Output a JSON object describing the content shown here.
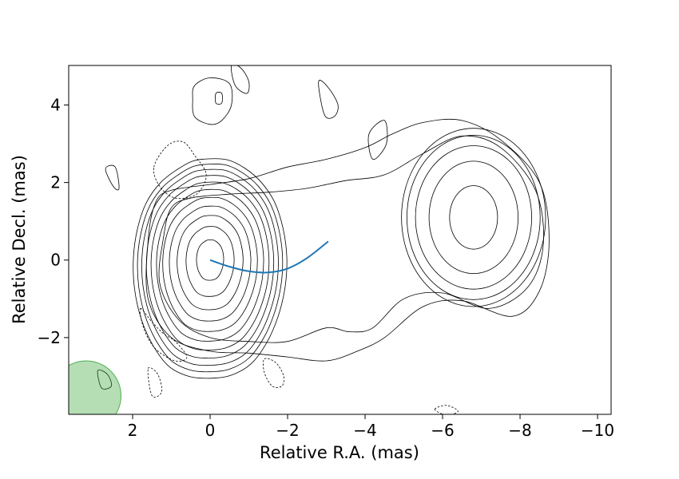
{
  "chart_data": {
    "type": "contour",
    "xlabel": "Relative R.A. (mas)",
    "ylabel": "Relative Decl. (mas)",
    "xlim": [
      3.65,
      -10.35
    ],
    "ylim": [
      -3.98,
      5.02
    ],
    "x_ticks": [
      2,
      0,
      -2,
      -4,
      -6,
      -8,
      -10
    ],
    "y_ticks": [
      4,
      2,
      0,
      -2
    ],
    "x_tick_labels": [
      "2",
      "0",
      "−2",
      "−4",
      "−6",
      "−8",
      "−10"
    ],
    "y_tick_labels": [
      "4",
      "2",
      "0",
      "−2"
    ],
    "curve": {
      "color": "#1f77b4",
      "x": [
        0,
        -0.5,
        -1.0,
        -1.5,
        -2.0,
        -2.5,
        -3.05
      ],
      "y": [
        0.0,
        -0.17,
        -0.29,
        -0.32,
        -0.22,
        0.05,
        0.48
      ]
    },
    "beam": {
      "center": [
        3.2,
        -3.5
      ],
      "radius_mas": 0.9,
      "color": "#2ca02c",
      "alpha": 0.35
    },
    "core_contours": {
      "center": [
        0.0,
        0.05
      ],
      "shape": [
        [
          0.0,
          1.0
        ],
        [
          30,
          0.97
        ],
        [
          60,
          0.9
        ],
        [
          90,
          0.86
        ],
        [
          120,
          0.88
        ],
        [
          150,
          0.96
        ],
        [
          180,
          1.0
        ],
        [
          210,
          1.04
        ],
        [
          240,
          1.08
        ],
        [
          270,
          1.04
        ],
        [
          300,
          1.06
        ],
        [
          330,
          1.02
        ],
        [
          360,
          1.0
        ]
      ],
      "radii": [
        [
          0.35,
          0.55
        ],
        [
          0.62,
          0.95
        ],
        [
          0.85,
          1.28
        ],
        [
          1.05,
          1.56
        ],
        [
          1.22,
          1.82
        ],
        [
          1.38,
          2.06
        ],
        [
          1.52,
          2.28
        ],
        [
          1.64,
          2.48
        ],
        [
          1.76,
          2.66
        ],
        [
          1.87,
          2.82
        ],
        [
          1.98,
          2.98
        ]
      ]
    },
    "knot_contours": {
      "center": [
        -6.8,
        1.1
      ],
      "radii": [
        [
          0.62,
          0.82
        ],
        [
          1.15,
          1.45
        ],
        [
          1.5,
          1.85
        ],
        [
          1.72,
          2.12
        ],
        [
          1.86,
          2.3
        ]
      ]
    },
    "envelope_contours": [
      {
        "x": [
          1.0,
          0.5,
          -0.5,
          -1.5,
          -2.5,
          -3.5,
          -4.5,
          -5.5,
          -6.5,
          -7.5,
          -8.4,
          -8.6,
          -8.2,
          -7.2,
          -6.0,
          -5.0,
          -4.2,
          -3.6,
          -3.0,
          -2.0,
          -1.0,
          0.0,
          0.8,
          1.3,
          1.2,
          1.0
        ],
        "y": [
          1.35,
          1.6,
          1.7,
          1.75,
          1.85,
          2.05,
          2.2,
          2.75,
          3.2,
          2.9,
          1.8,
          0.4,
          -0.7,
          -1.25,
          -0.85,
          -1.0,
          -1.75,
          -1.85,
          -1.75,
          -2.1,
          -2.1,
          -2.0,
          -1.55,
          -0.6,
          0.6,
          1.35
        ]
      },
      {
        "x": [
          1.4,
          1.0,
          0.0,
          -1.0,
          -2.0,
          -3.0,
          -4.0,
          -4.7,
          -5.5,
          -6.5,
          -7.5,
          -8.5,
          -8.75,
          -8.5,
          -7.8,
          -6.5,
          -5.5,
          -4.5,
          -3.8,
          -3.0,
          -2.0,
          -1.0,
          0.0,
          1.0,
          1.6,
          1.6,
          1.4
        ],
        "y": [
          1.5,
          1.8,
          1.95,
          2.1,
          2.4,
          2.6,
          2.9,
          3.25,
          3.55,
          3.6,
          3.1,
          2.0,
          0.5,
          -0.8,
          -1.45,
          -1.05,
          -1.2,
          -2.0,
          -2.35,
          -2.6,
          -2.5,
          -2.4,
          -2.35,
          -2.0,
          -1.0,
          0.5,
          1.5
        ]
      }
    ],
    "negative_contours": [
      {
        "x": [
          1.45,
          1.1,
          0.7,
          0.4,
          0.1,
          0.35,
          0.9,
          1.3,
          1.45
        ],
        "y": [
          2.4,
          2.95,
          3.05,
          2.7,
          2.2,
          1.7,
          1.6,
          1.9,
          2.4
        ]
      },
      {
        "x": [
          1.8,
          1.5,
          1.2,
          0.9,
          0.6,
          0.9,
          1.4,
          1.7,
          1.8
        ],
        "y": [
          -1.25,
          -1.6,
          -1.9,
          -2.1,
          -2.5,
          -2.6,
          -2.3,
          -1.8,
          -1.25
        ]
      },
      {
        "x": [
          -1.4,
          -1.7,
          -1.9,
          -1.85,
          -1.6,
          -1.4,
          -1.4
        ],
        "y": [
          -2.55,
          -2.65,
          -3.0,
          -3.25,
          -3.25,
          -2.9,
          -2.55
        ]
      },
      {
        "x": [
          1.6,
          1.35,
          1.25,
          1.5,
          1.6
        ],
        "y": [
          -2.8,
          -2.95,
          -3.4,
          -3.5,
          -2.8
        ]
      },
      {
        "x": [
          -5.8,
          -6.1,
          -6.4,
          -6.1,
          -5.8
        ],
        "y": [
          -3.85,
          -3.75,
          -3.9,
          -4.0,
          -3.85
        ]
      }
    ],
    "island_contours": [
      {
        "x": [
          0.4,
          0.0,
          -0.5,
          -0.55,
          -0.3,
          0.0,
          0.4,
          0.45,
          0.4
        ],
        "y": [
          4.5,
          4.7,
          4.55,
          4.0,
          3.6,
          3.5,
          3.7,
          4.15,
          4.5
        ]
      },
      {
        "x": [
          -0.15,
          -0.3,
          -0.3,
          -0.15,
          -0.15
        ],
        "y": [
          4.3,
          4.3,
          4.05,
          4.05,
          4.3
        ]
      },
      {
        "x": [
          -0.55,
          -0.8,
          -1.0,
          -0.95,
          -0.65,
          -0.55
        ],
        "y": [
          5.02,
          4.95,
          4.6,
          4.3,
          4.5,
          5.02
        ]
      },
      {
        "x": [
          2.7,
          2.45,
          2.35,
          2.5,
          2.7
        ],
        "y": [
          2.35,
          2.4,
          1.85,
          1.9,
          2.35
        ]
      },
      {
        "x": [
          2.9,
          2.65,
          2.55,
          2.8,
          2.9
        ],
        "y": [
          -2.85,
          -2.95,
          -3.25,
          -3.3,
          -2.85
        ]
      },
      {
        "x": [
          -2.8,
          -3.05,
          -3.3,
          -3.2,
          -2.95,
          -2.8
        ],
        "y": [
          4.6,
          4.45,
          4.0,
          3.7,
          3.75,
          4.6
        ]
      },
      {
        "x": [
          -4.1,
          -4.5,
          -4.55,
          -4.2,
          -4.1
        ],
        "y": [
          3.25,
          3.6,
          3.0,
          2.6,
          3.25
        ]
      }
    ]
  }
}
